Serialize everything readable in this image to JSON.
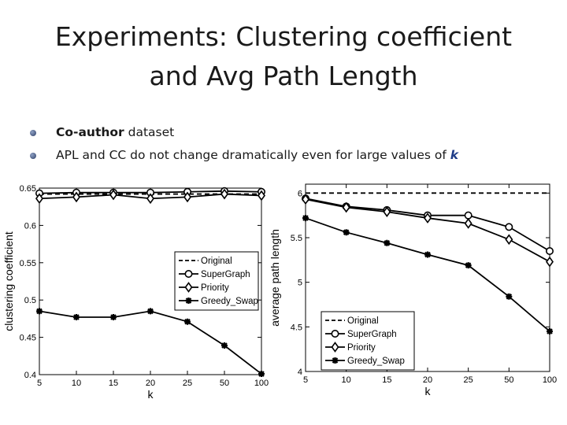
{
  "slide": {
    "title_line1": "Experiments: Clustering coefficient",
    "title_line2": "and Avg Path Length",
    "bullet1_bold": "Co-author",
    "bullet1_rest": " dataset",
    "bullet2_text": "APL and CC do not change dramatically even for large values of ",
    "bullet2_k": "k"
  },
  "chart_data": [
    {
      "type": "line",
      "categories": [
        "5",
        "10",
        "15",
        "20",
        "25",
        "50",
        "100"
      ],
      "xlabel": "k",
      "ylabel": "clustering coefficient",
      "ylim": [
        0.4,
        0.65
      ],
      "yticks": [
        "0.4",
        "0.45",
        "0.5",
        "0.55",
        "0.6",
        "0.65"
      ],
      "legend_position": "center-right",
      "series": [
        {
          "name": "Original",
          "style": "dashed",
          "marker": "none",
          "values": [
            0.642,
            0.642,
            0.642,
            0.642,
            0.642,
            0.642,
            0.642
          ]
        },
        {
          "name": "SuperGraph",
          "style": "solid",
          "marker": "circle",
          "values": [
            0.643,
            0.644,
            0.644,
            0.644,
            0.645,
            0.646,
            0.645
          ]
        },
        {
          "name": "Priority",
          "style": "solid",
          "marker": "diamond",
          "values": [
            0.636,
            0.638,
            0.641,
            0.636,
            0.638,
            0.642,
            0.64
          ]
        },
        {
          "name": "Greedy_Swap",
          "style": "solid",
          "marker": "star",
          "values": [
            0.485,
            0.477,
            0.477,
            0.485,
            0.471,
            0.439,
            0.401
          ]
        }
      ]
    },
    {
      "type": "line",
      "categories": [
        "5",
        "10",
        "15",
        "20",
        "25",
        "50",
        "100"
      ],
      "xlabel": "k",
      "ylabel": "average path length",
      "ylim": [
        4,
        6.1
      ],
      "yticks": [
        "4",
        "4.5",
        "5",
        "5.5",
        "6"
      ],
      "legend_position": "bottom-left",
      "series": [
        {
          "name": "Original",
          "style": "dashed",
          "marker": "none",
          "values": [
            6.0,
            6.0,
            6.0,
            6.0,
            6.0,
            6.0,
            6.0
          ]
        },
        {
          "name": "SuperGraph",
          "style": "solid",
          "marker": "circle",
          "values": [
            5.94,
            5.85,
            5.81,
            5.75,
            5.75,
            5.62,
            5.35
          ]
        },
        {
          "name": "Priority",
          "style": "solid",
          "marker": "diamond",
          "values": [
            5.93,
            5.84,
            5.79,
            5.72,
            5.66,
            5.48,
            5.23
          ]
        },
        {
          "name": "Greedy_Swap",
          "style": "solid",
          "marker": "star",
          "values": [
            5.72,
            5.56,
            5.44,
            5.31,
            5.19,
            4.84,
            4.45
          ]
        }
      ]
    }
  ]
}
